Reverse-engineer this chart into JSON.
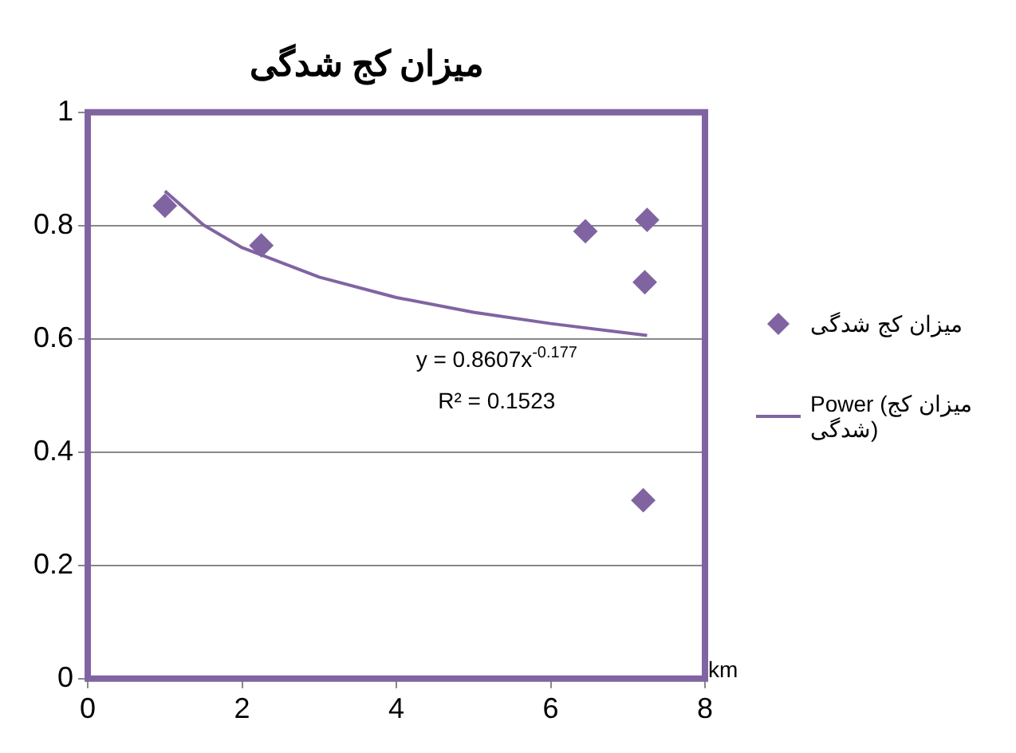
{
  "chart_data": {
    "type": "scatter",
    "title": "میزان کج شدگی",
    "xlabel": "km",
    "series": [
      {
        "name": "میزان کج شدگی",
        "color": "#8064a2",
        "marker": "diamond",
        "x": [
          1.0,
          2.25,
          6.45,
          7.25,
          7.22,
          7.2
        ],
        "values": [
          0.835,
          0.765,
          0.79,
          0.81,
          0.7,
          0.315
        ]
      },
      {
        "name": "Power (میزان کج شدگی)",
        "type": "line",
        "color": "#8064a2",
        "marker": "none",
        "x": [
          1,
          1.5,
          2,
          3,
          4,
          5,
          6,
          7.25
        ],
        "values": [
          0.861,
          0.801,
          0.761,
          0.709,
          0.673,
          0.647,
          0.627,
          0.606
        ]
      }
    ],
    "annotations": [
      "y = 0.8607x$^{-0.177}$",
      "R² = 0.1523"
    ],
    "xlim": [
      0,
      8
    ],
    "xticks": [
      0,
      2,
      4,
      6,
      8
    ],
    "ylim": [
      0,
      1
    ],
    "yticks": [
      0,
      0.2,
      0.4,
      0.6,
      0.8,
      1
    ],
    "grid": "y",
    "legend": "right"
  }
}
